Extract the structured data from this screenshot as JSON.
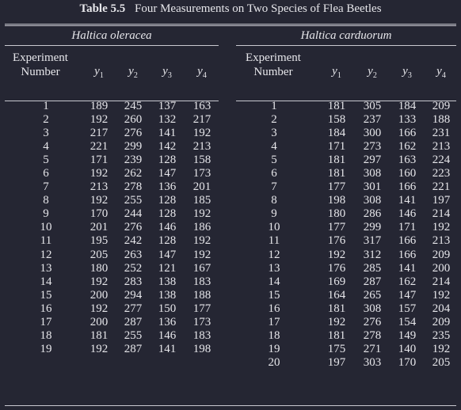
{
  "caption": {
    "number": "Table 5.5",
    "title": "Four Measurements on Two Species of Flea Beetles"
  },
  "species": {
    "left": "Haltica oleracea",
    "right": "Haltica carduorum"
  },
  "headers": {
    "experiment_line1": "Experiment",
    "experiment_line2": "Number",
    "vars": [
      "y",
      "y",
      "y",
      "y"
    ],
    "subs": [
      "1",
      "2",
      "3",
      "4"
    ]
  },
  "oleracea": [
    [
      "1",
      "189",
      "245",
      "137",
      "163"
    ],
    [
      "2",
      "192",
      "260",
      "132",
      "217"
    ],
    [
      "3",
      "217",
      "276",
      "141",
      "192"
    ],
    [
      "4",
      "221",
      "299",
      "142",
      "213"
    ],
    [
      "5",
      "171",
      "239",
      "128",
      "158"
    ],
    [
      "6",
      "192",
      "262",
      "147",
      "173"
    ],
    [
      "7",
      "213",
      "278",
      "136",
      "201"
    ],
    [
      "8",
      "192",
      "255",
      "128",
      "185"
    ],
    [
      "9",
      "170",
      "244",
      "128",
      "192"
    ],
    [
      "10",
      "201",
      "276",
      "146",
      "186"
    ],
    [
      "11",
      "195",
      "242",
      "128",
      "192"
    ],
    [
      "12",
      "205",
      "263",
      "147",
      "192"
    ],
    [
      "13",
      "180",
      "252",
      "121",
      "167"
    ],
    [
      "14",
      "192",
      "283",
      "138",
      "183"
    ],
    [
      "15",
      "200",
      "294",
      "138",
      "188"
    ],
    [
      "16",
      "192",
      "277",
      "150",
      "177"
    ],
    [
      "17",
      "200",
      "287",
      "136",
      "173"
    ],
    [
      "18",
      "181",
      "255",
      "146",
      "183"
    ],
    [
      "19",
      "192",
      "287",
      "141",
      "198"
    ]
  ],
  "carduorum": [
    [
      "1",
      "181",
      "305",
      "184",
      "209"
    ],
    [
      "2",
      "158",
      "237",
      "133",
      "188"
    ],
    [
      "3",
      "184",
      "300",
      "166",
      "231"
    ],
    [
      "4",
      "171",
      "273",
      "162",
      "213"
    ],
    [
      "5",
      "181",
      "297",
      "163",
      "224"
    ],
    [
      "6",
      "181",
      "308",
      "160",
      "223"
    ],
    [
      "7",
      "177",
      "301",
      "166",
      "221"
    ],
    [
      "8",
      "198",
      "308",
      "141",
      "197"
    ],
    [
      "9",
      "180",
      "286",
      "146",
      "214"
    ],
    [
      "10",
      "177",
      "299",
      "171",
      "192"
    ],
    [
      "11",
      "176",
      "317",
      "166",
      "213"
    ],
    [
      "12",
      "192",
      "312",
      "166",
      "209"
    ],
    [
      "13",
      "176",
      "285",
      "141",
      "200"
    ],
    [
      "14",
      "169",
      "287",
      "162",
      "214"
    ],
    [
      "15",
      "164",
      "265",
      "147",
      "192"
    ],
    [
      "16",
      "181",
      "308",
      "157",
      "204"
    ],
    [
      "17",
      "192",
      "276",
      "154",
      "209"
    ],
    [
      "18",
      "181",
      "278",
      "149",
      "235"
    ],
    [
      "19",
      "175",
      "271",
      "140",
      "192"
    ],
    [
      "20",
      "197",
      "303",
      "170",
      "205"
    ]
  ]
}
